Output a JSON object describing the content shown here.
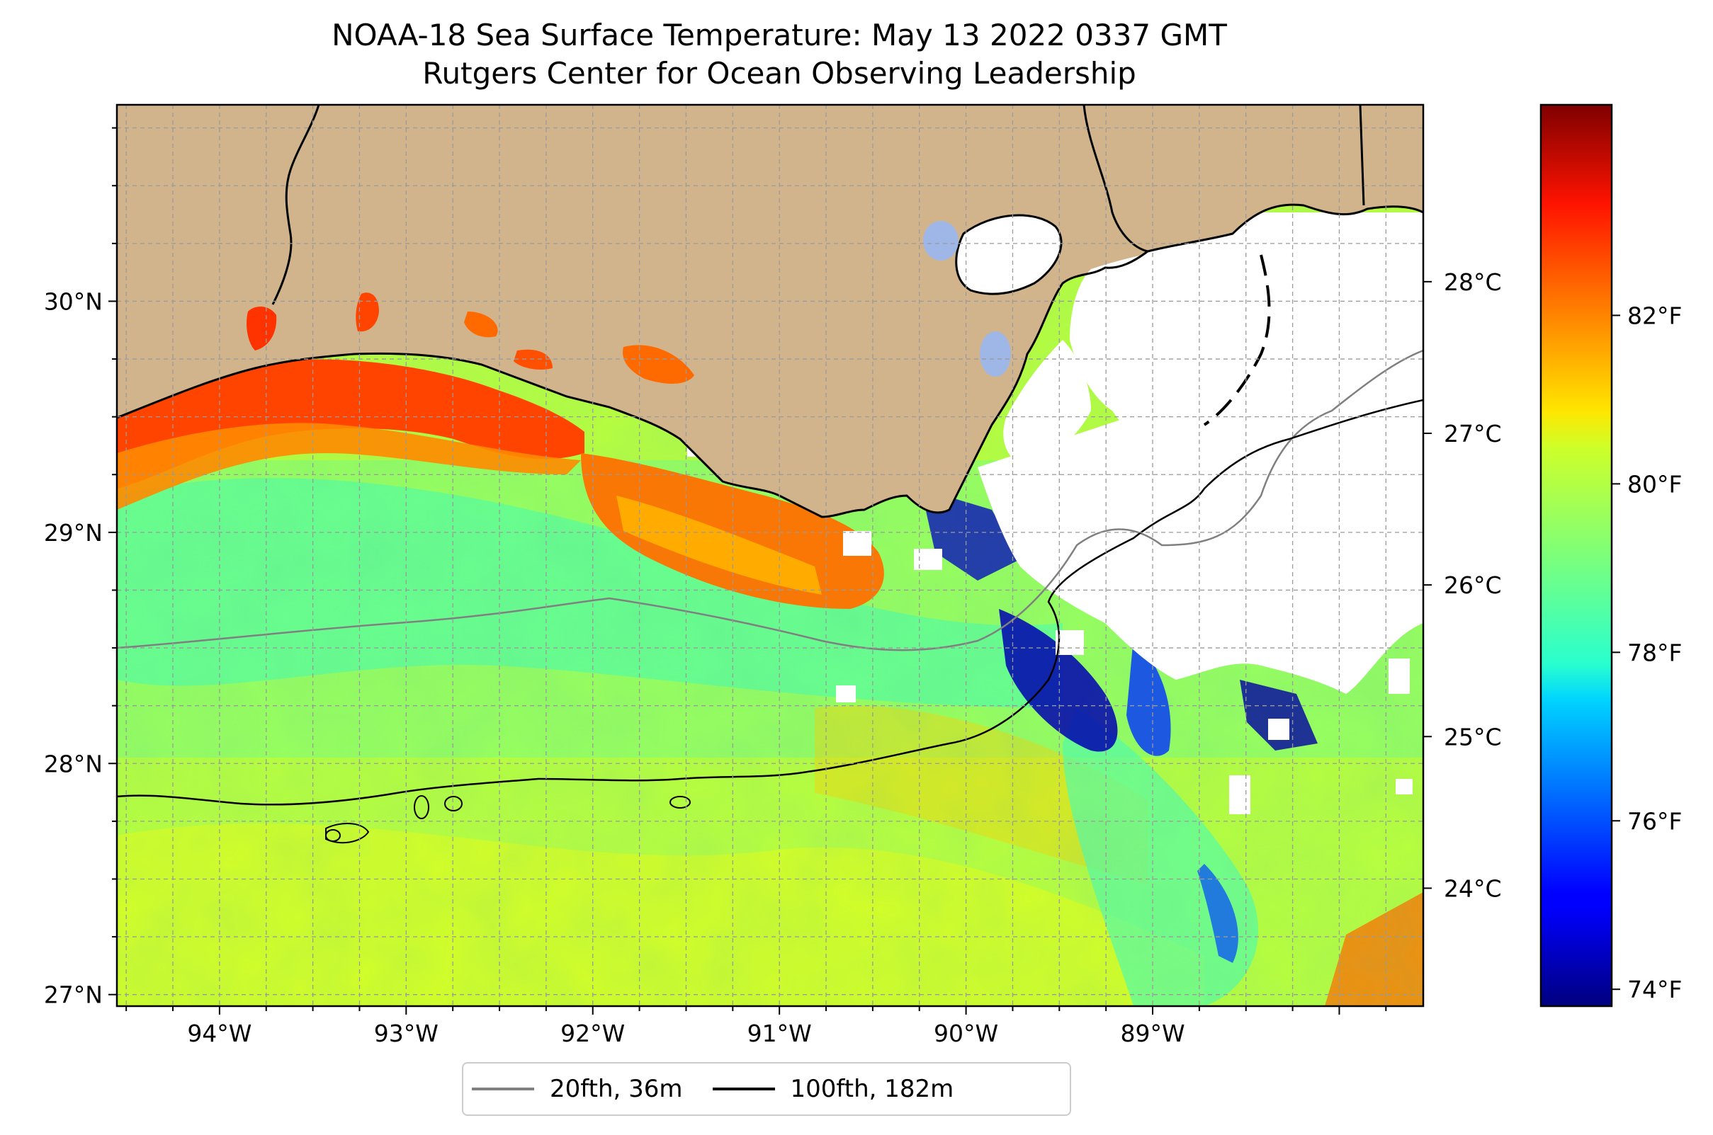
{
  "title": {
    "line1": "NOAA-18 Sea Surface Temperature: May 13 2022 0337 GMT",
    "line2": "Rutgers Center for Ocean Observing Leadership"
  },
  "map": {
    "lon_range": [
      -94.55,
      -87.55
    ],
    "lat_range": [
      26.95,
      30.85
    ],
    "lon_ticks": [
      {
        "value": -94,
        "label": "94°W"
      },
      {
        "value": -93,
        "label": "93°W"
      },
      {
        "value": -92,
        "label": "92°W"
      },
      {
        "value": -91,
        "label": "91°W"
      },
      {
        "value": -90,
        "label": "90°W"
      },
      {
        "value": -89,
        "label": "89°W"
      }
    ],
    "lat_ticks": [
      {
        "value": 27,
        "label": "27°N"
      },
      {
        "value": 28,
        "label": "28°N"
      },
      {
        "value": 29,
        "label": "29°N"
      },
      {
        "value": 30,
        "label": "30°N"
      }
    ],
    "grid": true,
    "land_color": "#d2b48c",
    "no_data_color": "#ffffff",
    "lake_color": "#9fb7e6"
  },
  "colorbar": {
    "colormap": "jet",
    "range_f": [
      73.8,
      84.5
    ],
    "fahrenheit_ticks": [
      {
        "value": 74,
        "label": "74°F"
      },
      {
        "value": 76,
        "label": "76°F"
      },
      {
        "value": 78,
        "label": "78°F"
      },
      {
        "value": 80,
        "label": "80°F"
      },
      {
        "value": 82,
        "label": "82°F"
      }
    ],
    "celsius_ticks": [
      {
        "value": 24,
        "label": "24°C"
      },
      {
        "value": 25,
        "label": "25°C"
      },
      {
        "value": 26,
        "label": "26°C"
      },
      {
        "value": 27,
        "label": "27°C"
      },
      {
        "value": 28,
        "label": "28°C"
      }
    ]
  },
  "legend": {
    "items": [
      {
        "label": "20fth, 36m",
        "color": "#808080"
      },
      {
        "label": "100fth, 182m",
        "color": "#000000"
      }
    ],
    "placement": "bottom-center"
  }
}
